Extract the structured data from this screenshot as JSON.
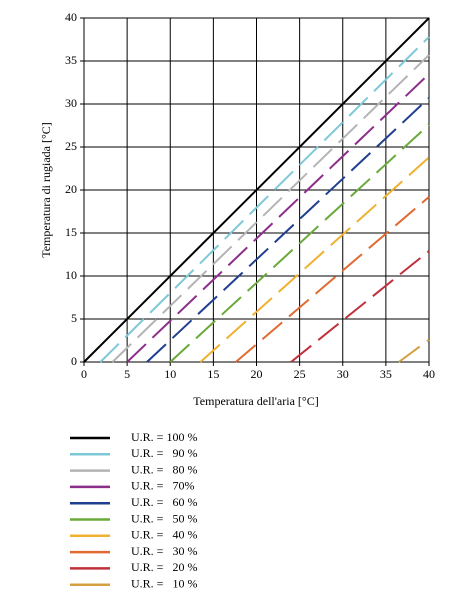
{
  "chart_data": {
    "type": "line",
    "xlabel": "Temperatura dell'aria [°C]",
    "ylabel": "Temperatura di rugiada [°C]",
    "xlim": [
      0,
      40
    ],
    "ylim": [
      0,
      40
    ],
    "xticks": [
      0,
      5,
      10,
      15,
      20,
      25,
      30,
      35,
      40
    ],
    "yticks": [
      0,
      5,
      10,
      15,
      20,
      25,
      30,
      35,
      40
    ],
    "grid": true,
    "series": [
      {
        "name": "U.R. = 100 %",
        "color": "#000000",
        "style": "solid",
        "x": [
          0,
          40
        ],
        "values": [
          0,
          40
        ]
      },
      {
        "name": "U.R. =   90 %",
        "color": "#7ec8d8",
        "style": "dashed",
        "x": [
          1.9,
          40
        ],
        "values": [
          0,
          37.8
        ]
      },
      {
        "name": "U.R. =   80 %",
        "color": "#b4b4b4",
        "style": "dashed",
        "x": [
          3.3,
          40
        ],
        "values": [
          0,
          35.7
        ]
      },
      {
        "name": "U.R. =   70%",
        "color": "#8b2f8b",
        "style": "dashed",
        "x": [
          5,
          40
        ],
        "values": [
          0,
          33.5
        ]
      },
      {
        "name": "U.R. =   60 %",
        "color": "#1f3f8f",
        "style": "dashed",
        "x": [
          7.3,
          40
        ],
        "values": [
          0,
          30.7
        ]
      },
      {
        "name": "U.R. =   50 %",
        "color": "#6aaa3a",
        "style": "dashed",
        "x": [
          10,
          40
        ],
        "values": [
          0,
          27.6
        ]
      },
      {
        "name": "U.R. =   40 %",
        "color": "#f0b030",
        "style": "dashed",
        "x": [
          13.5,
          40
        ],
        "values": [
          0,
          23.8
        ]
      },
      {
        "name": "U.R. =   30 %",
        "color": "#e06a30",
        "style": "dashed",
        "x": [
          17.6,
          40
        ],
        "values": [
          0,
          19.2
        ]
      },
      {
        "name": "U.R. =   20 %",
        "color": "#c0303a",
        "style": "dashed",
        "x": [
          24,
          40
        ],
        "values": [
          0,
          12.9
        ]
      },
      {
        "name": "U.R. =   10 %",
        "color": "#d4a040",
        "style": "dashed",
        "x": [
          36.5,
          40
        ],
        "values": [
          0,
          2.6
        ]
      }
    ]
  }
}
